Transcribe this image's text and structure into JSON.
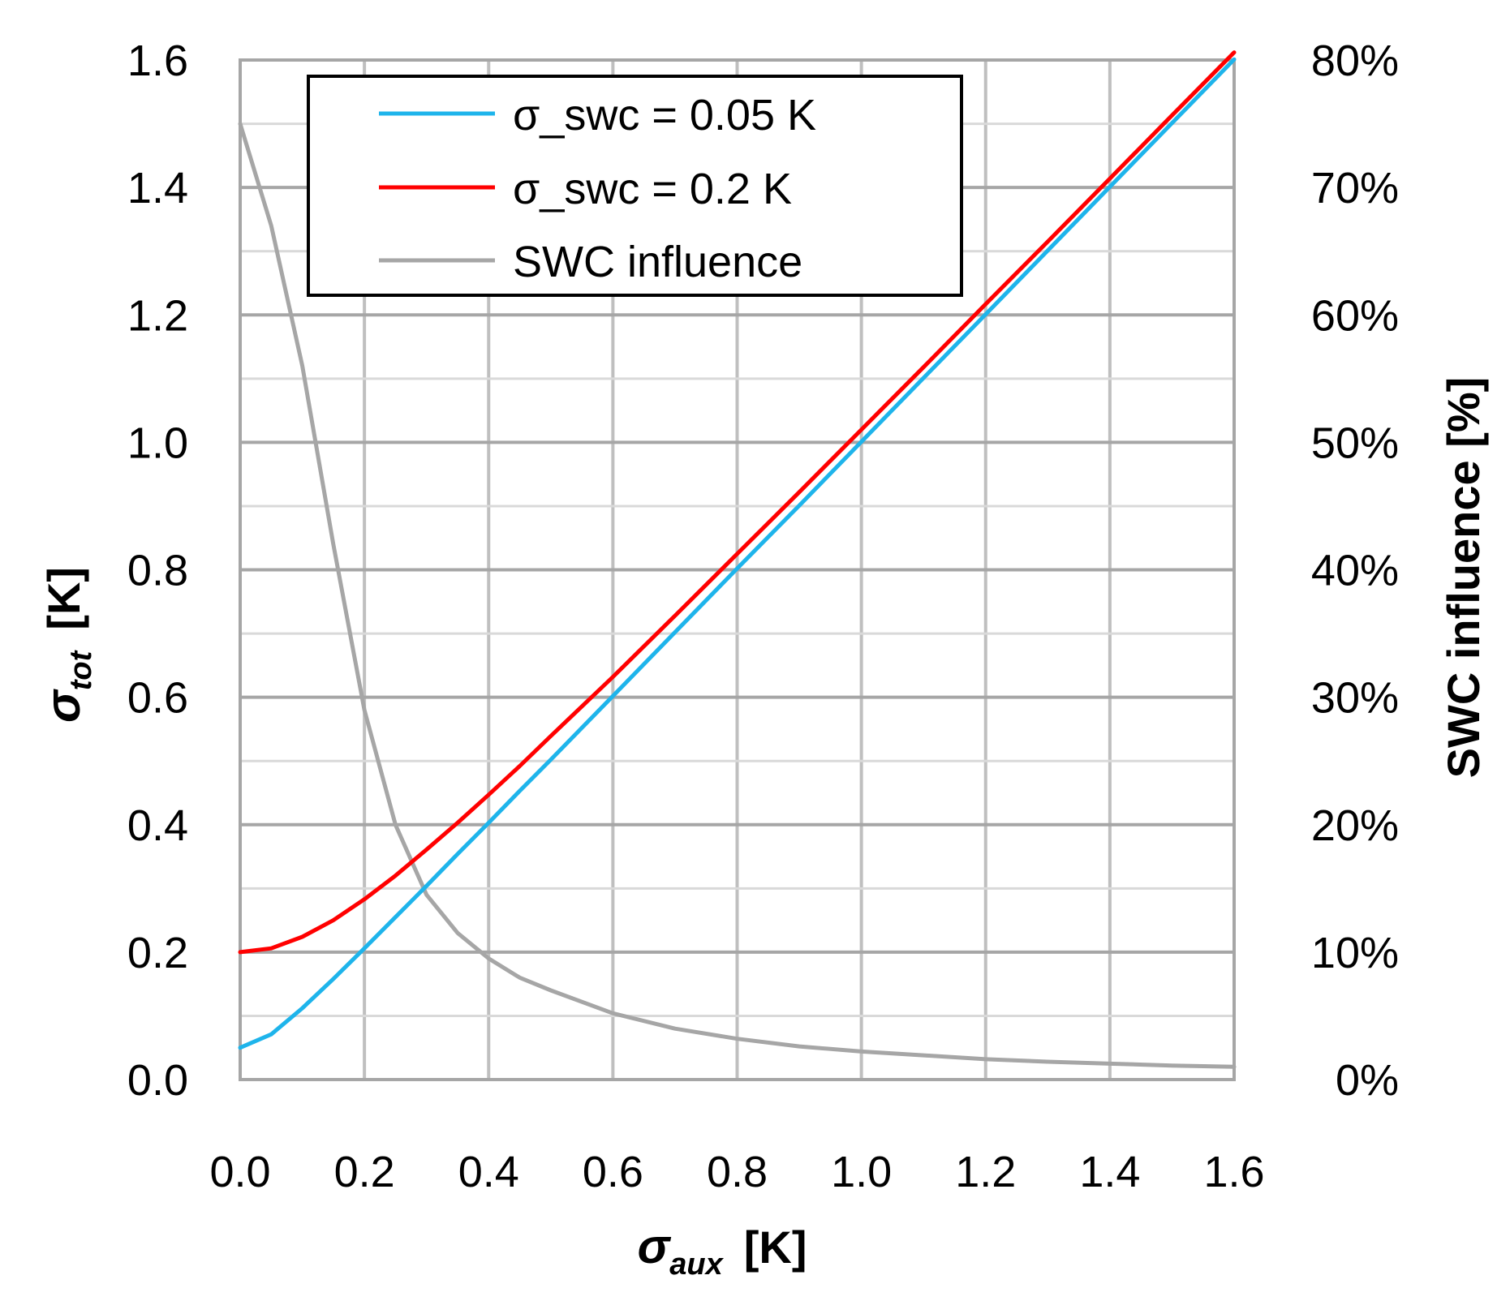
{
  "chart_data": {
    "type": "line",
    "x": [
      0.0,
      0.05,
      0.1,
      0.15,
      0.2,
      0.25,
      0.3,
      0.35,
      0.4,
      0.45,
      0.5,
      0.6,
      0.7,
      0.8,
      0.9,
      1.0,
      1.1,
      1.2,
      1.3,
      1.4,
      1.5,
      1.6
    ],
    "series": [
      {
        "name": "σ_swc = 0.05 K",
        "axis": "left",
        "color": "#1EB4EB",
        "values": [
          0.05,
          0.071,
          0.112,
          0.158,
          0.206,
          0.255,
          0.304,
          0.354,
          0.403,
          0.453,
          0.502,
          0.602,
          0.702,
          0.802,
          0.901,
          1.001,
          1.101,
          1.201,
          1.301,
          1.401,
          1.501,
          1.601
        ]
      },
      {
        "name": "σ_swc = 0.2 K",
        "axis": "left",
        "color": "#FF0000",
        "values": [
          0.2,
          0.206,
          0.224,
          0.25,
          0.283,
          0.32,
          0.361,
          0.403,
          0.447,
          0.492,
          0.539,
          0.632,
          0.728,
          0.825,
          0.922,
          1.02,
          1.118,
          1.217,
          1.315,
          1.414,
          1.513,
          1.612
        ]
      },
      {
        "name": "SWC influence",
        "axis": "right",
        "unit": "%",
        "color": "#A6A6A6",
        "values": [
          75.0,
          67.0,
          56.0,
          42.0,
          29.0,
          20.0,
          14.5,
          11.5,
          9.5,
          8.0,
          7.0,
          5.2,
          4.0,
          3.2,
          2.6,
          2.2,
          1.9,
          1.6,
          1.4,
          1.25,
          1.1,
          1.0
        ]
      }
    ],
    "xlabel": "σ",
    "xlabel_sub": "aux",
    "xlabel_unit": "[K]",
    "ylabel": "σ",
    "ylabel_sub": "tot",
    "ylabel_unit": "[K]",
    "y2label": "SWC influence [%]",
    "xlim": [
      0,
      1.6
    ],
    "ylim": [
      0,
      1.6
    ],
    "y2lim": [
      0,
      80
    ],
    "x_ticks": [
      "0.0",
      "0.2",
      "0.4",
      "0.6",
      "0.8",
      "1.0",
      "1.2",
      "1.4",
      "1.6"
    ],
    "y_ticks": [
      "0.0",
      "0.2",
      "0.4",
      "0.6",
      "0.8",
      "1.0",
      "1.2",
      "1.4",
      "1.6"
    ],
    "y2_ticks": [
      "0%",
      "10%",
      "20%",
      "30%",
      "40%",
      "50%",
      "60%",
      "70%",
      "80%"
    ],
    "grid": true,
    "legend_position": "top-left"
  }
}
